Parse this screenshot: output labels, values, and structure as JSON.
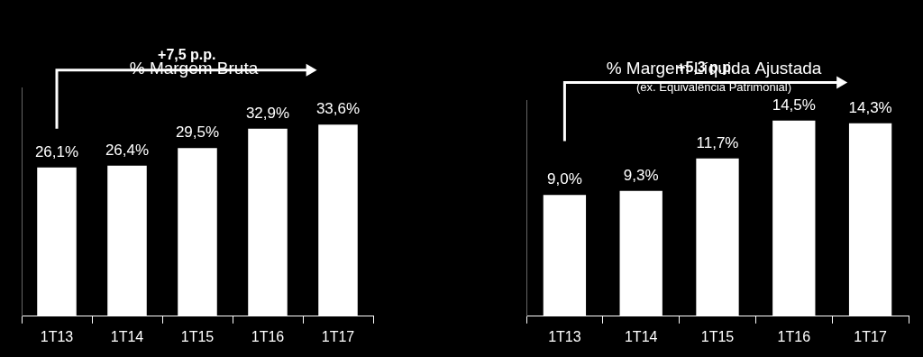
{
  "chart_data": [
    {
      "type": "bar",
      "title": "% Margem Bruta",
      "categories": [
        "1T13",
        "1T14",
        "1T15",
        "1T16",
        "1T17"
      ],
      "values": [
        26.1,
        26.4,
        29.5,
        32.9,
        33.6
      ],
      "value_labels": [
        "26,1%",
        "26,4%",
        "29,5%",
        "32,9%",
        "33,6%"
      ],
      "data_labels": true,
      "color": "#ffffff",
      "annotation": "+7,5 p.p.",
      "ylim": [
        0,
        40
      ],
      "yticks": [],
      "grid": false,
      "tick_labels": "x"
    },
    {
      "type": "bar",
      "title": "% Margem Líquida Ajustada",
      "subtitle": "(ex. Equivalência Patrimonial)",
      "categories": [
        "1T13",
        "1T14",
        "1T15",
        "1T16",
        "1T17"
      ],
      "values": [
        9.0,
        9.3,
        11.7,
        14.5,
        14.3
      ],
      "value_labels": [
        "9,0%",
        "9,3%",
        "11,7%",
        "14,5%",
        "14,3%"
      ],
      "data_labels": true,
      "color": "#ffffff",
      "annotation": "+5,3 p.p.",
      "ylim": [
        0,
        16
      ],
      "yticks": [],
      "grid": false,
      "tick_labels": "x"
    }
  ]
}
